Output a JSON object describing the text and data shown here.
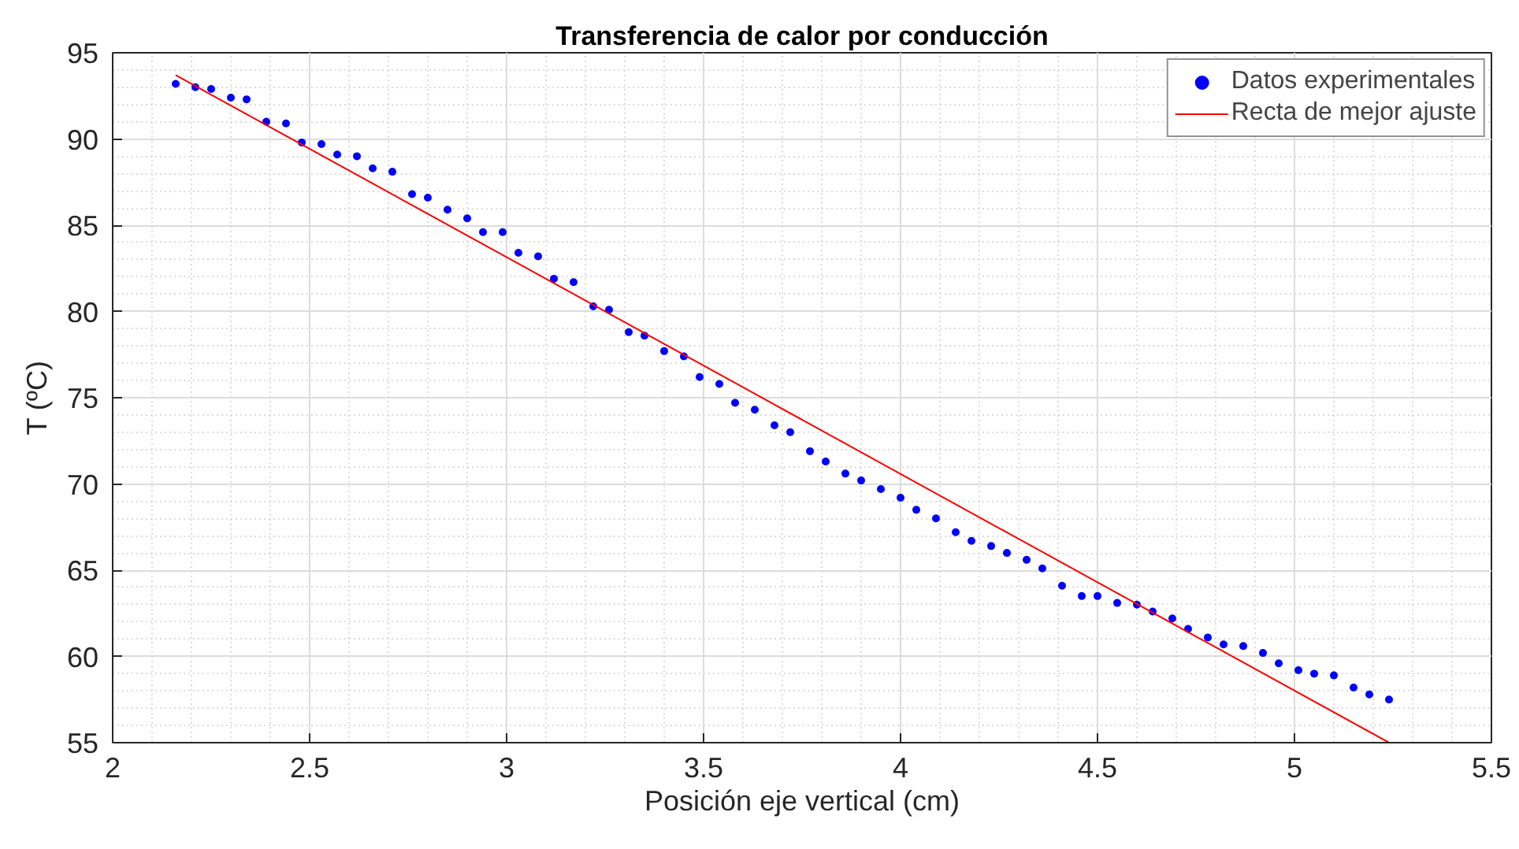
{
  "chart_data": {
    "type": "scatter",
    "title": "Transferencia de calor por conducción",
    "xlabel": "Posición eje vertical (cm)",
    "ylabel": "T (ºC)",
    "xlim": [
      2,
      5.5
    ],
    "ylim": [
      55,
      95
    ],
    "xticks": [
      2,
      2.5,
      3,
      3.5,
      4,
      4.5,
      5,
      5.5
    ],
    "yticks": [
      55,
      60,
      65,
      70,
      75,
      80,
      85,
      90,
      95
    ],
    "grid": true,
    "legend": "top right",
    "series": [
      {
        "name": "Datos experimentales",
        "marker": "circle",
        "color": "#0000ff",
        "x": [
          2.16,
          2.21,
          2.25,
          2.3,
          2.34,
          2.39,
          2.44,
          2.48,
          2.53,
          2.57,
          2.62,
          2.66,
          2.71,
          2.76,
          2.8,
          2.85,
          2.9,
          2.94,
          2.99,
          3.03,
          3.08,
          3.12,
          3.17,
          3.22,
          3.26,
          3.31,
          3.35,
          3.4,
          3.45,
          3.49,
          3.54,
          3.58,
          3.63,
          3.68,
          3.72,
          3.77,
          3.81,
          3.86,
          3.9,
          3.95,
          4.0,
          4.04,
          4.09,
          4.14,
          4.18,
          4.23,
          4.27,
          4.32,
          4.36,
          4.41,
          4.46,
          4.5,
          4.55,
          4.6,
          4.64,
          4.69,
          4.73,
          4.78,
          4.82,
          4.87,
          4.92,
          4.96,
          5.01,
          5.05,
          5.1,
          5.15,
          5.19,
          5.24
        ],
        "values": [
          93.2,
          93.0,
          92.9,
          92.4,
          92.3,
          91.0,
          90.9,
          89.8,
          89.7,
          89.1,
          89.0,
          88.3,
          88.1,
          86.8,
          86.6,
          85.9,
          85.4,
          84.6,
          84.6,
          83.4,
          83.2,
          81.9,
          81.7,
          80.3,
          80.1,
          78.8,
          78.6,
          77.7,
          77.4,
          76.2,
          75.8,
          74.7,
          74.3,
          73.4,
          73.0,
          71.9,
          71.3,
          70.6,
          70.2,
          69.7,
          69.2,
          68.5,
          68.0,
          67.2,
          66.7,
          66.4,
          66.0,
          65.6,
          65.1,
          64.1,
          63.5,
          63.5,
          63.1,
          63.0,
          62.6,
          62.2,
          61.6,
          61.1,
          60.7,
          60.6,
          60.2,
          59.6,
          59.2,
          59.0,
          58.9,
          58.2,
          57.8,
          57.5
        ]
      },
      {
        "name": "Recta de mejor ajuste",
        "type": "line",
        "color": "#ff0000",
        "line_style": "solid",
        "x": [
          2.16,
          5.24
        ],
        "values": [
          93.7,
          55.0
        ]
      }
    ]
  }
}
